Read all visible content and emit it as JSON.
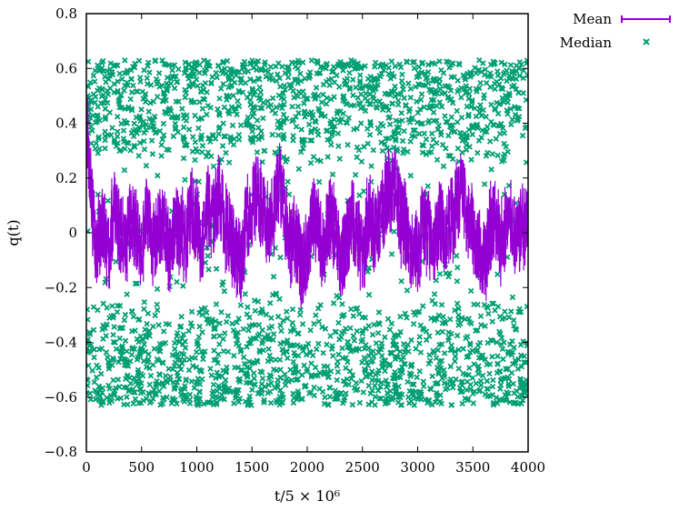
{
  "chart_data": {
    "type": "scatter",
    "xlabel": "t/5 × 10⁶",
    "ylabel": "q(t)",
    "xlim": [
      0,
      4000
    ],
    "ylim": [
      -0.8,
      0.8
    ],
    "xticks": [
      "0",
      "500",
      "1000",
      "1500",
      "2000",
      "2500",
      "3000",
      "3500",
      "4000"
    ],
    "xtick_values": [
      0,
      500,
      1000,
      1500,
      2000,
      2500,
      3000,
      3500,
      4000
    ],
    "yticks": [
      "−0.8",
      "−0.6",
      "−0.4",
      "−0.2",
      "0",
      "0.2",
      "0.4",
      "0.6",
      "0.8"
    ],
    "ytick_values": [
      -0.8,
      -0.6,
      -0.4,
      -0.2,
      0,
      0.2,
      0.4,
      0.6,
      0.8
    ],
    "grid": false,
    "legend_position": "outside-top-right",
    "series": [
      {
        "name": "Mean",
        "style": "line-with-errorbars",
        "color": "#9400d3",
        "description_range": "fluctuates mostly between about -0.25 and 0.25 around 0 for t from 0 to 4000",
        "x": [
          0,
          20,
          40,
          60,
          80,
          100,
          150,
          200,
          250,
          300,
          350,
          400,
          450,
          500,
          550,
          600,
          650,
          700,
          750,
          800,
          850,
          900,
          950,
          1000,
          1050,
          1100,
          1150,
          1200,
          1250,
          1300,
          1350,
          1400,
          1450,
          1500,
          1550,
          1600,
          1650,
          1700,
          1750,
          1800,
          1850,
          1900,
          1950,
          2000,
          2050,
          2100,
          2150,
          2200,
          2250,
          2300,
          2350,
          2400,
          2450,
          2500,
          2550,
          2600,
          2650,
          2700,
          2750,
          2800,
          2850,
          2900,
          2950,
          3000,
          3050,
          3100,
          3150,
          3200,
          3250,
          3300,
          3350,
          3400,
          3450,
          3500,
          3550,
          3600,
          3650,
          3700,
          3750,
          3800,
          3850,
          3900,
          3950,
          4000
        ],
        "y": [
          0.45,
          0.3,
          0.15,
          0.05,
          0.0,
          -0.05,
          0.05,
          -0.1,
          0.1,
          0.0,
          -0.05,
          0.05,
          0.0,
          -0.1,
          0.1,
          -0.05,
          0.0,
          0.05,
          -0.1,
          0.05,
          0.0,
          -0.05,
          0.1,
          0.05,
          -0.05,
          0.1,
          0.05,
          0.15,
          0.05,
          0.0,
          -0.05,
          -0.1,
          0.05,
          0.1,
          0.15,
          0.05,
          0.0,
          0.1,
          0.2,
          0.05,
          -0.05,
          0.0,
          -0.15,
          -0.05,
          0.05,
          0.0,
          -0.05,
          0.05,
          0.0,
          -0.1,
          -0.05,
          0.05,
          0.0,
          -0.1,
          0.05,
          0.0,
          0.05,
          0.1,
          0.2,
          0.15,
          0.05,
          0.0,
          -0.1,
          -0.05,
          0.05,
          0.0,
          -0.05,
          0.05,
          0.0,
          0.05,
          0.1,
          0.15,
          0.05,
          0.0,
          -0.05,
          -0.1,
          0.0,
          0.05,
          -0.05,
          0.0,
          0.05,
          -0.05,
          0.05,
          0.0
        ]
      },
      {
        "name": "Median",
        "style": "markers-x",
        "color": "#009e73",
        "description_range": "bimodal: dense bands between about 0.25 and 0.62 and between about -0.25 and -0.62, with scattered points near 0",
        "band_upper": [
          0.25,
          0.63
        ],
        "band_lower": [
          -0.63,
          -0.25
        ]
      }
    ]
  }
}
